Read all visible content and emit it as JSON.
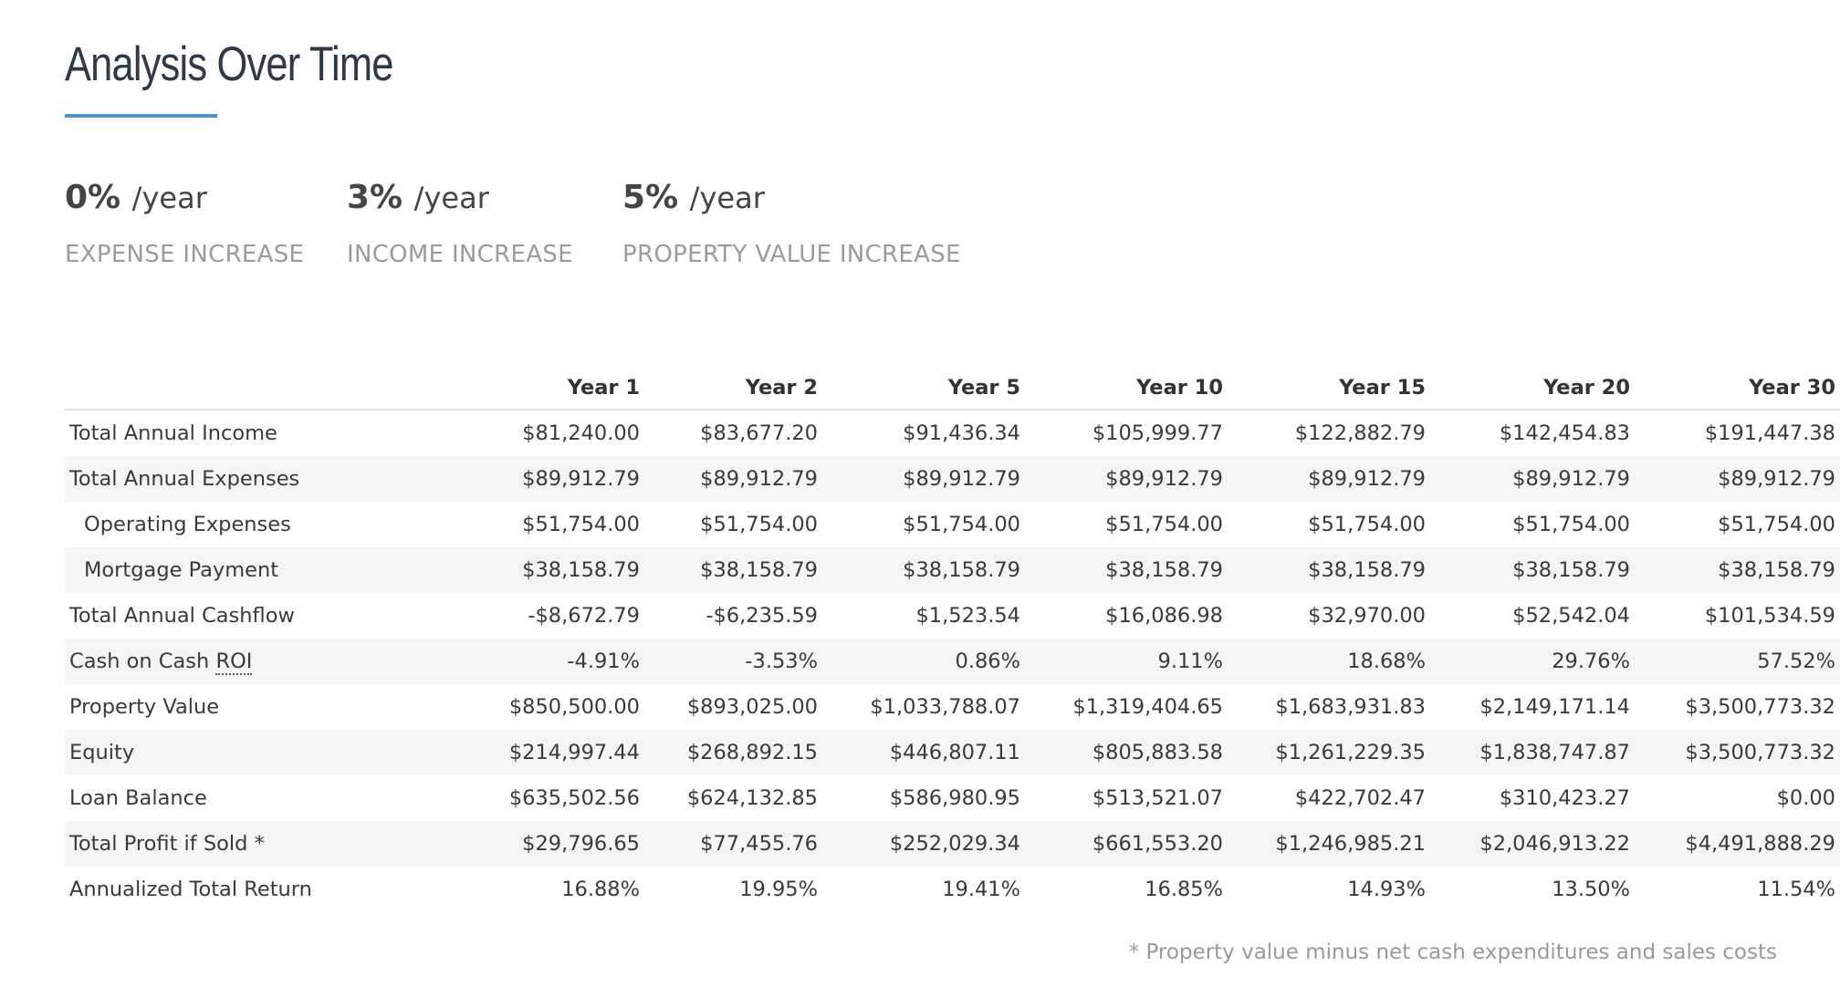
{
  "page": {
    "title": "Analysis Over Time",
    "accent_color": "#4a90e2"
  },
  "stats": [
    {
      "value": "0%",
      "unit": "/year",
      "label": "EXPENSE INCREASE"
    },
    {
      "value": "3%",
      "unit": "/year",
      "label": "INCOME INCREASE"
    },
    {
      "value": "5%",
      "unit": "/year",
      "label": "PROPERTY VALUE INCREASE"
    }
  ],
  "table": {
    "columns": [
      "",
      "Year 1",
      "Year 2",
      "Year 5",
      "Year 10",
      "Year 15",
      "Year 20",
      "Year 30"
    ],
    "rows": [
      {
        "label": "Total Annual Income",
        "values": [
          "$81,240.00",
          "$83,677.20",
          "$91,436.34",
          "$105,999.77",
          "$122,882.79",
          "$142,454.83",
          "$191,447.38"
        ]
      },
      {
        "label": "Total Annual Expenses",
        "values": [
          "$89,912.79",
          "$89,912.79",
          "$89,912.79",
          "$89,912.79",
          "$89,912.79",
          "$89,912.79",
          "$89,912.79"
        ]
      },
      {
        "label": "Operating Expenses",
        "values": [
          "$51,754.00",
          "$51,754.00",
          "$51,754.00",
          "$51,754.00",
          "$51,754.00",
          "$51,754.00",
          "$51,754.00"
        ]
      },
      {
        "label": "Mortgage Payment",
        "values": [
          "$38,158.79",
          "$38,158.79",
          "$38,158.79",
          "$38,158.79",
          "$38,158.79",
          "$38,158.79",
          "$38,158.79"
        ]
      },
      {
        "label": "Total Annual Cashflow",
        "values": [
          "-$8,672.79",
          "-$6,235.59",
          "$1,523.54",
          "$16,086.98",
          "$32,970.00",
          "$52,542.04",
          "$101,534.59"
        ]
      },
      {
        "label": "Cash on Cash",
        "label_abbr": "ROI",
        "values": [
          "-4.91%",
          "-3.53%",
          "0.86%",
          "9.11%",
          "18.68%",
          "29.76%",
          "57.52%"
        ]
      },
      {
        "label": "Property Value",
        "values": [
          "$850,500.00",
          "$893,025.00",
          "$1,033,788.07",
          "$1,319,404.65",
          "$1,683,931.83",
          "$2,149,171.14",
          "$3,500,773.32"
        ]
      },
      {
        "label": "Equity",
        "values": [
          "$214,997.44",
          "$268,892.15",
          "$446,807.11",
          "$805,883.58",
          "$1,261,229.35",
          "$1,838,747.87",
          "$3,500,773.32"
        ]
      },
      {
        "label": "Loan Balance",
        "values": [
          "$635,502.56",
          "$624,132.85",
          "$586,980.95",
          "$513,521.07",
          "$422,702.47",
          "$310,423.27",
          "$0.00"
        ]
      },
      {
        "label": "Total Profit if Sold *",
        "values": [
          "$29,796.65",
          "$77,455.76",
          "$252,029.34",
          "$661,553.20",
          "$1,246,985.21",
          "$2,046,913.22",
          "$4,491,888.29"
        ]
      },
      {
        "label": "Annualized Total Return",
        "values": [
          "16.88%",
          "19.95%",
          "19.41%",
          "16.85%",
          "14.93%",
          "13.50%",
          "11.54%"
        ]
      }
    ]
  },
  "footnote": "* Property value minus net cash expenditures and sales costs"
}
